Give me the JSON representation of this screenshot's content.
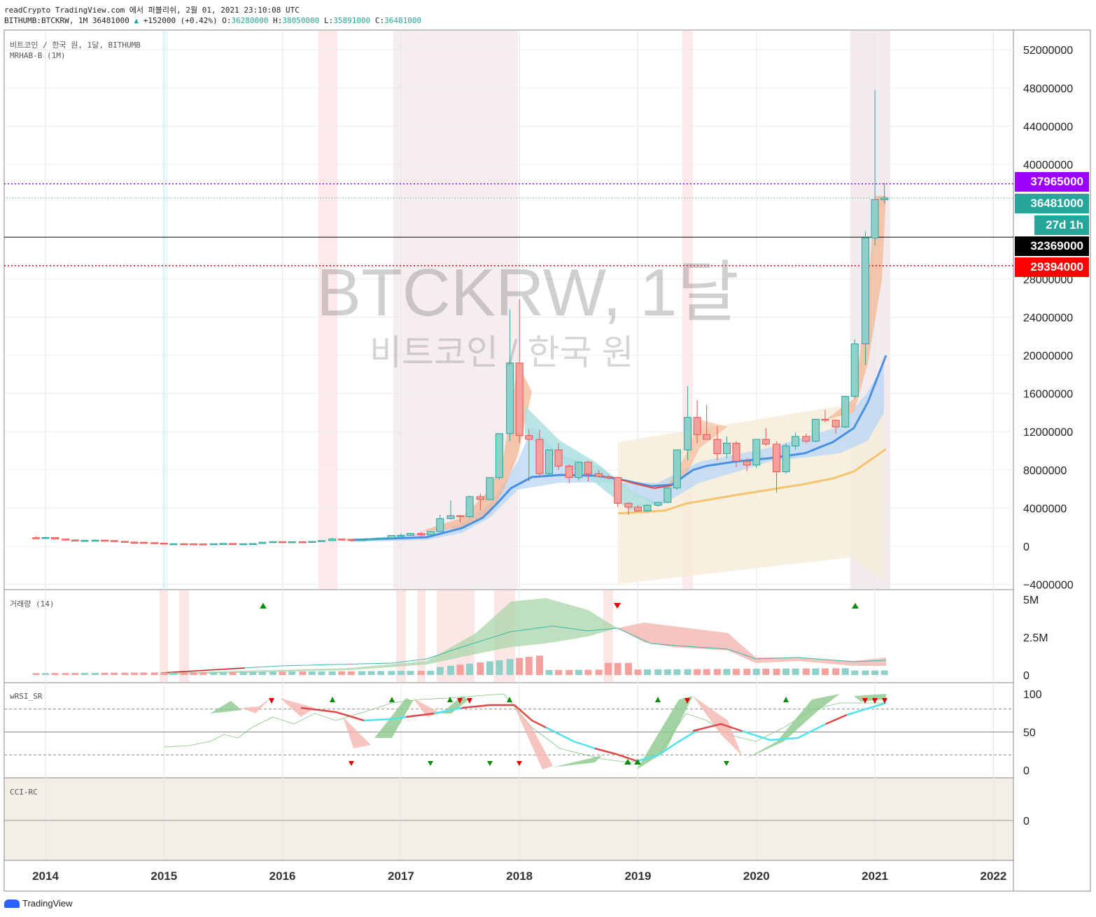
{
  "header": {
    "line1": "readCrypto TradingView.com 에서 퍼블리쉬, 2월 01, 2021 23:10:08 UTC",
    "symbol": "BITHUMB:BTCKRW, 1M",
    "last": "36481000",
    "arrow": "▲",
    "change": "+152000 (+0.42%)",
    "o_label": "O:",
    "o": "36280000",
    "h_label": "H:",
    "h": "38050000",
    "l_label": "L:",
    "l": "35891000",
    "c_label": "C:",
    "c": "36481000"
  },
  "pane_labels": {
    "main1": "비트코인 / 한국 원, 1달, BITHUMB",
    "main2": "MRHAB-B (1M)",
    "volume": "거래량 (14)",
    "rsi": "wRSI_SR",
    "cci": "CCI-RC"
  },
  "watermark": {
    "title": "BTCKRW, 1달",
    "subtitle": "비트코인 / 한국 원"
  },
  "price_tags": [
    {
      "label": "37965000",
      "color": "#9c00ff"
    },
    {
      "label": "36481000",
      "color": "#26a69a"
    },
    {
      "label": "27d 1h",
      "color": "#26a69a"
    },
    {
      "label": "32369000",
      "color": "#000000"
    },
    {
      "label": "29394000",
      "color": "#ff0000"
    }
  ],
  "logo": "TradingView",
  "icons": {
    "logo": "tradingview-logo-icon",
    "up": "triangle-up-icon",
    "down": "triangle-down-icon"
  },
  "colors": {
    "up": "#26a69a",
    "down": "#ef5350",
    "upBody": "#8fd0c8",
    "downBody": "#f4a09c",
    "ma_blue": "#4a90e2",
    "ma_yellow": "#f5c36b"
  },
  "chart_data": [
    {
      "type": "candlestick",
      "title": "BTCKRW, 1달",
      "ylim": [
        -4000000,
        54000000
      ],
      "y_ticks": [
        -4000000,
        0,
        4000000,
        8000000,
        12000000,
        16000000,
        20000000,
        24000000,
        28000000,
        40000000,
        44000000,
        48000000,
        52000000
      ],
      "y_tick_labels": [
        "−4000000",
        "0",
        "4000000",
        "8000000",
        "12000000",
        "16000000",
        "20000000",
        "24000000",
        "28000000",
        "40000000",
        "44000000",
        "48000000",
        "52000000"
      ],
      "x_ticks": [
        2014,
        2015,
        2016,
        2017,
        2018,
        2019,
        2020,
        2021,
        2022
      ],
      "x_tick_labels": [
        "2014",
        "2015",
        "2016",
        "2017",
        "2018",
        "2019",
        "2020",
        "2021",
        "2022"
      ],
      "horizontal_lines": [
        37965000,
        32369000,
        29394000
      ],
      "candles_ohlc": [
        [
          2013.92,
          900000,
          1050000,
          750000,
          820000
        ],
        [
          2014.0,
          820000,
          1000000,
          750000,
          920000
        ],
        [
          2014.08,
          920000,
          950000,
          700000,
          760000
        ],
        [
          2014.17,
          760000,
          800000,
          600000,
          660000
        ],
        [
          2014.25,
          660000,
          700000,
          520000,
          560000
        ],
        [
          2014.33,
          560000,
          680000,
          520000,
          620000
        ],
        [
          2014.42,
          620000,
          700000,
          580000,
          640000
        ],
        [
          2014.5,
          640000,
          680000,
          560000,
          600000
        ],
        [
          2014.58,
          600000,
          640000,
          480000,
          520000
        ],
        [
          2014.67,
          520000,
          560000,
          400000,
          440000
        ],
        [
          2014.75,
          440000,
          500000,
          380000,
          420000
        ],
        [
          2014.83,
          420000,
          440000,
          360000,
          380000
        ],
        [
          2014.92,
          380000,
          400000,
          300000,
          330000
        ],
        [
          2015.0,
          330000,
          360000,
          220000,
          260000
        ],
        [
          2015.08,
          260000,
          300000,
          230000,
          270000
        ],
        [
          2015.17,
          270000,
          300000,
          240000,
          260000
        ],
        [
          2015.25,
          260000,
          280000,
          240000,
          250000
        ],
        [
          2015.33,
          250000,
          270000,
          230000,
          240000
        ],
        [
          2015.42,
          240000,
          280000,
          230000,
          270000
        ],
        [
          2015.5,
          270000,
          320000,
          260000,
          300000
        ],
        [
          2015.58,
          300000,
          310000,
          240000,
          260000
        ],
        [
          2015.67,
          260000,
          280000,
          250000,
          270000
        ],
        [
          2015.75,
          270000,
          300000,
          260000,
          290000
        ],
        [
          2015.83,
          290000,
          460000,
          280000,
          420000
        ],
        [
          2015.92,
          420000,
          520000,
          380000,
          490000
        ],
        [
          2016.0,
          490000,
          500000,
          420000,
          440000
        ],
        [
          2016.08,
          440000,
          500000,
          430000,
          480000
        ],
        [
          2016.17,
          480000,
          490000,
          460000,
          470000
        ],
        [
          2016.25,
          470000,
          520000,
          460000,
          510000
        ],
        [
          2016.33,
          510000,
          620000,
          500000,
          600000
        ],
        [
          2016.42,
          600000,
          880000,
          580000,
          760000
        ],
        [
          2016.5,
          760000,
          800000,
          700000,
          720000
        ],
        [
          2016.58,
          720000,
          730000,
          640000,
          680000
        ],
        [
          2016.67,
          680000,
          720000,
          660000,
          700000
        ],
        [
          2016.75,
          700000,
          800000,
          690000,
          790000
        ],
        [
          2016.83,
          790000,
          880000,
          760000,
          860000
        ],
        [
          2016.92,
          860000,
          1150000,
          850000,
          1130000
        ],
        [
          2017.0,
          1130000,
          1350000,
          1050000,
          1150000
        ],
        [
          2017.08,
          1150000,
          1400000,
          1100000,
          1350000
        ],
        [
          2017.17,
          1350000,
          1500000,
          1050000,
          1200000
        ],
        [
          2017.25,
          1200000,
          1600000,
          1150000,
          1550000
        ],
        [
          2017.33,
          1550000,
          3300000,
          1500000,
          2900000
        ],
        [
          2017.42,
          2900000,
          4800000,
          2800000,
          3200000
        ],
        [
          2017.5,
          3200000,
          3300000,
          2500000,
          3100000
        ],
        [
          2017.58,
          3100000,
          5300000,
          3000000,
          5200000
        ],
        [
          2017.67,
          5200000,
          5500000,
          3800000,
          4900000
        ],
        [
          2017.75,
          4900000,
          7000000,
          4800000,
          7200000
        ],
        [
          2017.83,
          7200000,
          11800000,
          7000000,
          11800000
        ],
        [
          2017.92,
          11800000,
          24800000,
          11000000,
          19200000
        ],
        [
          2018.0,
          19200000,
          25900000,
          10800000,
          11600000
        ],
        [
          2018.08,
          11600000,
          12300000,
          6800000,
          11200000
        ],
        [
          2018.17,
          11200000,
          12200000,
          7200000,
          7600000
        ],
        [
          2018.25,
          7600000,
          10100000,
          7300000,
          10100000
        ],
        [
          2018.33,
          10100000,
          10800000,
          8000000,
          8400000
        ],
        [
          2018.42,
          8400000,
          8600000,
          6600000,
          7200000
        ],
        [
          2018.5,
          7200000,
          8800000,
          6900000,
          8800000
        ],
        [
          2018.58,
          8800000,
          8900000,
          6800000,
          7600000
        ],
        [
          2018.67,
          7600000,
          8000000,
          7200000,
          7300000
        ],
        [
          2018.75,
          7300000,
          7500000,
          7000000,
          7200000
        ],
        [
          2018.83,
          7200000,
          7300000,
          4100000,
          4500000
        ],
        [
          2018.92,
          4500000,
          4600000,
          3300000,
          4100000
        ],
        [
          2019.0,
          4100000,
          4300000,
          3800000,
          3700000
        ],
        [
          2019.08,
          3700000,
          4400000,
          3600000,
          4300000
        ],
        [
          2019.17,
          4300000,
          4600000,
          4200000,
          4600000
        ],
        [
          2019.25,
          4600000,
          6200000,
          4500000,
          6100000
        ],
        [
          2019.33,
          6100000,
          9800000,
          5900000,
          10100000
        ],
        [
          2019.42,
          10100000,
          16800000,
          9000000,
          13500000
        ],
        [
          2019.5,
          13500000,
          15300000,
          10800000,
          11700000
        ],
        [
          2019.58,
          11700000,
          14800000,
          11200000,
          11200000
        ],
        [
          2019.67,
          11200000,
          12600000,
          9000000,
          9700000
        ],
        [
          2019.75,
          9700000,
          11500000,
          9200000,
          10800000
        ],
        [
          2019.83,
          10800000,
          11000000,
          8300000,
          8900000
        ],
        [
          2019.92,
          8900000,
          9200000,
          7900000,
          8500000
        ],
        [
          2020.0,
          8500000,
          11000000,
          8200000,
          11200000
        ],
        [
          2020.08,
          11200000,
          12400000,
          10500000,
          10700000
        ],
        [
          2020.17,
          10700000,
          11000000,
          5600000,
          7800000
        ],
        [
          2020.25,
          7800000,
          10800000,
          7600000,
          10500000
        ],
        [
          2020.33,
          10500000,
          11900000,
          10100000,
          11500000
        ],
        [
          2020.42,
          11500000,
          11800000,
          10800000,
          11000000
        ],
        [
          2020.5,
          11000000,
          13300000,
          10900000,
          13300000
        ],
        [
          2020.58,
          13300000,
          14300000,
          13000000,
          13200000
        ],
        [
          2020.67,
          13200000,
          13300000,
          11800000,
          12500000
        ],
        [
          2020.75,
          12500000,
          15800000,
          12400000,
          15700000
        ],
        [
          2020.83,
          15700000,
          21700000,
          15500000,
          21200000
        ],
        [
          2020.92,
          21200000,
          33000000,
          19000000,
          32300000
        ],
        [
          2021.0,
          32300000,
          47800000,
          31500000,
          36300000
        ],
        [
          2021.08,
          36300000,
          38050000,
          35891000,
          36481000
        ]
      ]
    },
    {
      "type": "bar",
      "title": "거래량 (14)",
      "y_ticks": [
        0,
        2500000,
        5000000
      ],
      "y_tick_labels": [
        "0",
        "2.5M",
        "5M"
      ],
      "note": "volume bars with smoothed volume bands"
    },
    {
      "type": "line",
      "title": "wRSI_SR",
      "ylim": [
        0,
        100
      ],
      "y_ticks": [
        0,
        50,
        100
      ],
      "y_tick_labels": [
        "0",
        "50",
        "100"
      ],
      "levels": [
        20,
        50,
        80
      ]
    },
    {
      "type": "line",
      "title": "CCI-RC",
      "y_ticks": [
        0
      ],
      "y_tick_labels": [
        "0"
      ]
    }
  ]
}
